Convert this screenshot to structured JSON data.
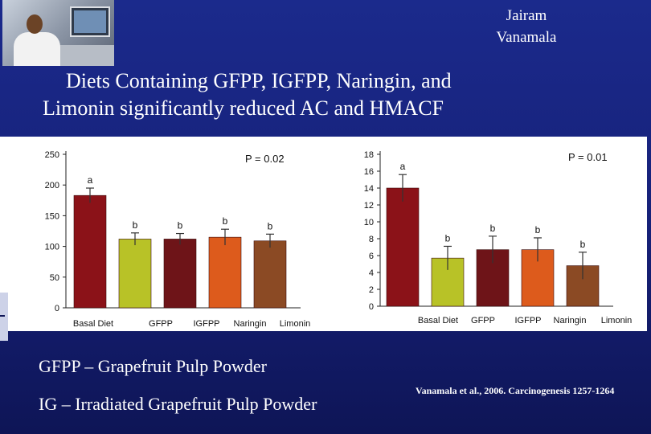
{
  "author": {
    "first": "Jairam",
    "last": "Vanamala"
  },
  "slide_title": {
    "line1": "Diets Containing GFPP, IGFPP, Naringin, and",
    "line2": "Limonin significantly  reduced AC and HMACF"
  },
  "definitions": [
    "GFPP – Grapefruit Pulp Powder",
    "IG – Irradiated Grapefruit Pulp Powder"
  ],
  "citation": "Vanamala et al., 2006. Carcinogenesis 1257-1264",
  "colors": {
    "background": "#1b2a8c",
    "basal": "#8b1218",
    "gfpp": "#b8c227",
    "igfpp": "#6e1418",
    "naringin": "#dd5b1c",
    "limonin": "#8b4a24",
    "error_bar": "#333333"
  },
  "chart_data": [
    {
      "type": "bar",
      "title": "",
      "xlabel": "",
      "ylabel": "",
      "categories": [
        "Basal Diet",
        "GFPP",
        "IGFPP",
        "Naringin",
        "Limonin"
      ],
      "values": [
        183,
        112,
        112,
        115,
        109
      ],
      "error": [
        12,
        10,
        9,
        13,
        11
      ],
      "significance": [
        "a",
        "b",
        "b",
        "b",
        "b"
      ],
      "ylim": [
        0,
        250
      ],
      "yticks": [
        0,
        50,
        100,
        150,
        200,
        250
      ],
      "annotation": "P = 0.02",
      "grid": false,
      "legend": "none"
    },
    {
      "type": "bar",
      "title": "",
      "xlabel": "",
      "ylabel": "",
      "categories": [
        "Basal Diet",
        "GFPP",
        "IGFPP",
        "Naringin",
        "Limonin"
      ],
      "values": [
        14,
        5.7,
        6.7,
        6.7,
        4.8
      ],
      "error": [
        1.6,
        1.4,
        1.6,
        1.4,
        1.6
      ],
      "significance": [
        "a",
        "b",
        "b",
        "b",
        "b"
      ],
      "ylim": [
        0,
        18
      ],
      "yticks": [
        0,
        2,
        4,
        6,
        8,
        10,
        12,
        14,
        16,
        18
      ],
      "annotation": "P = 0.01",
      "grid": false,
      "legend": "none"
    }
  ]
}
